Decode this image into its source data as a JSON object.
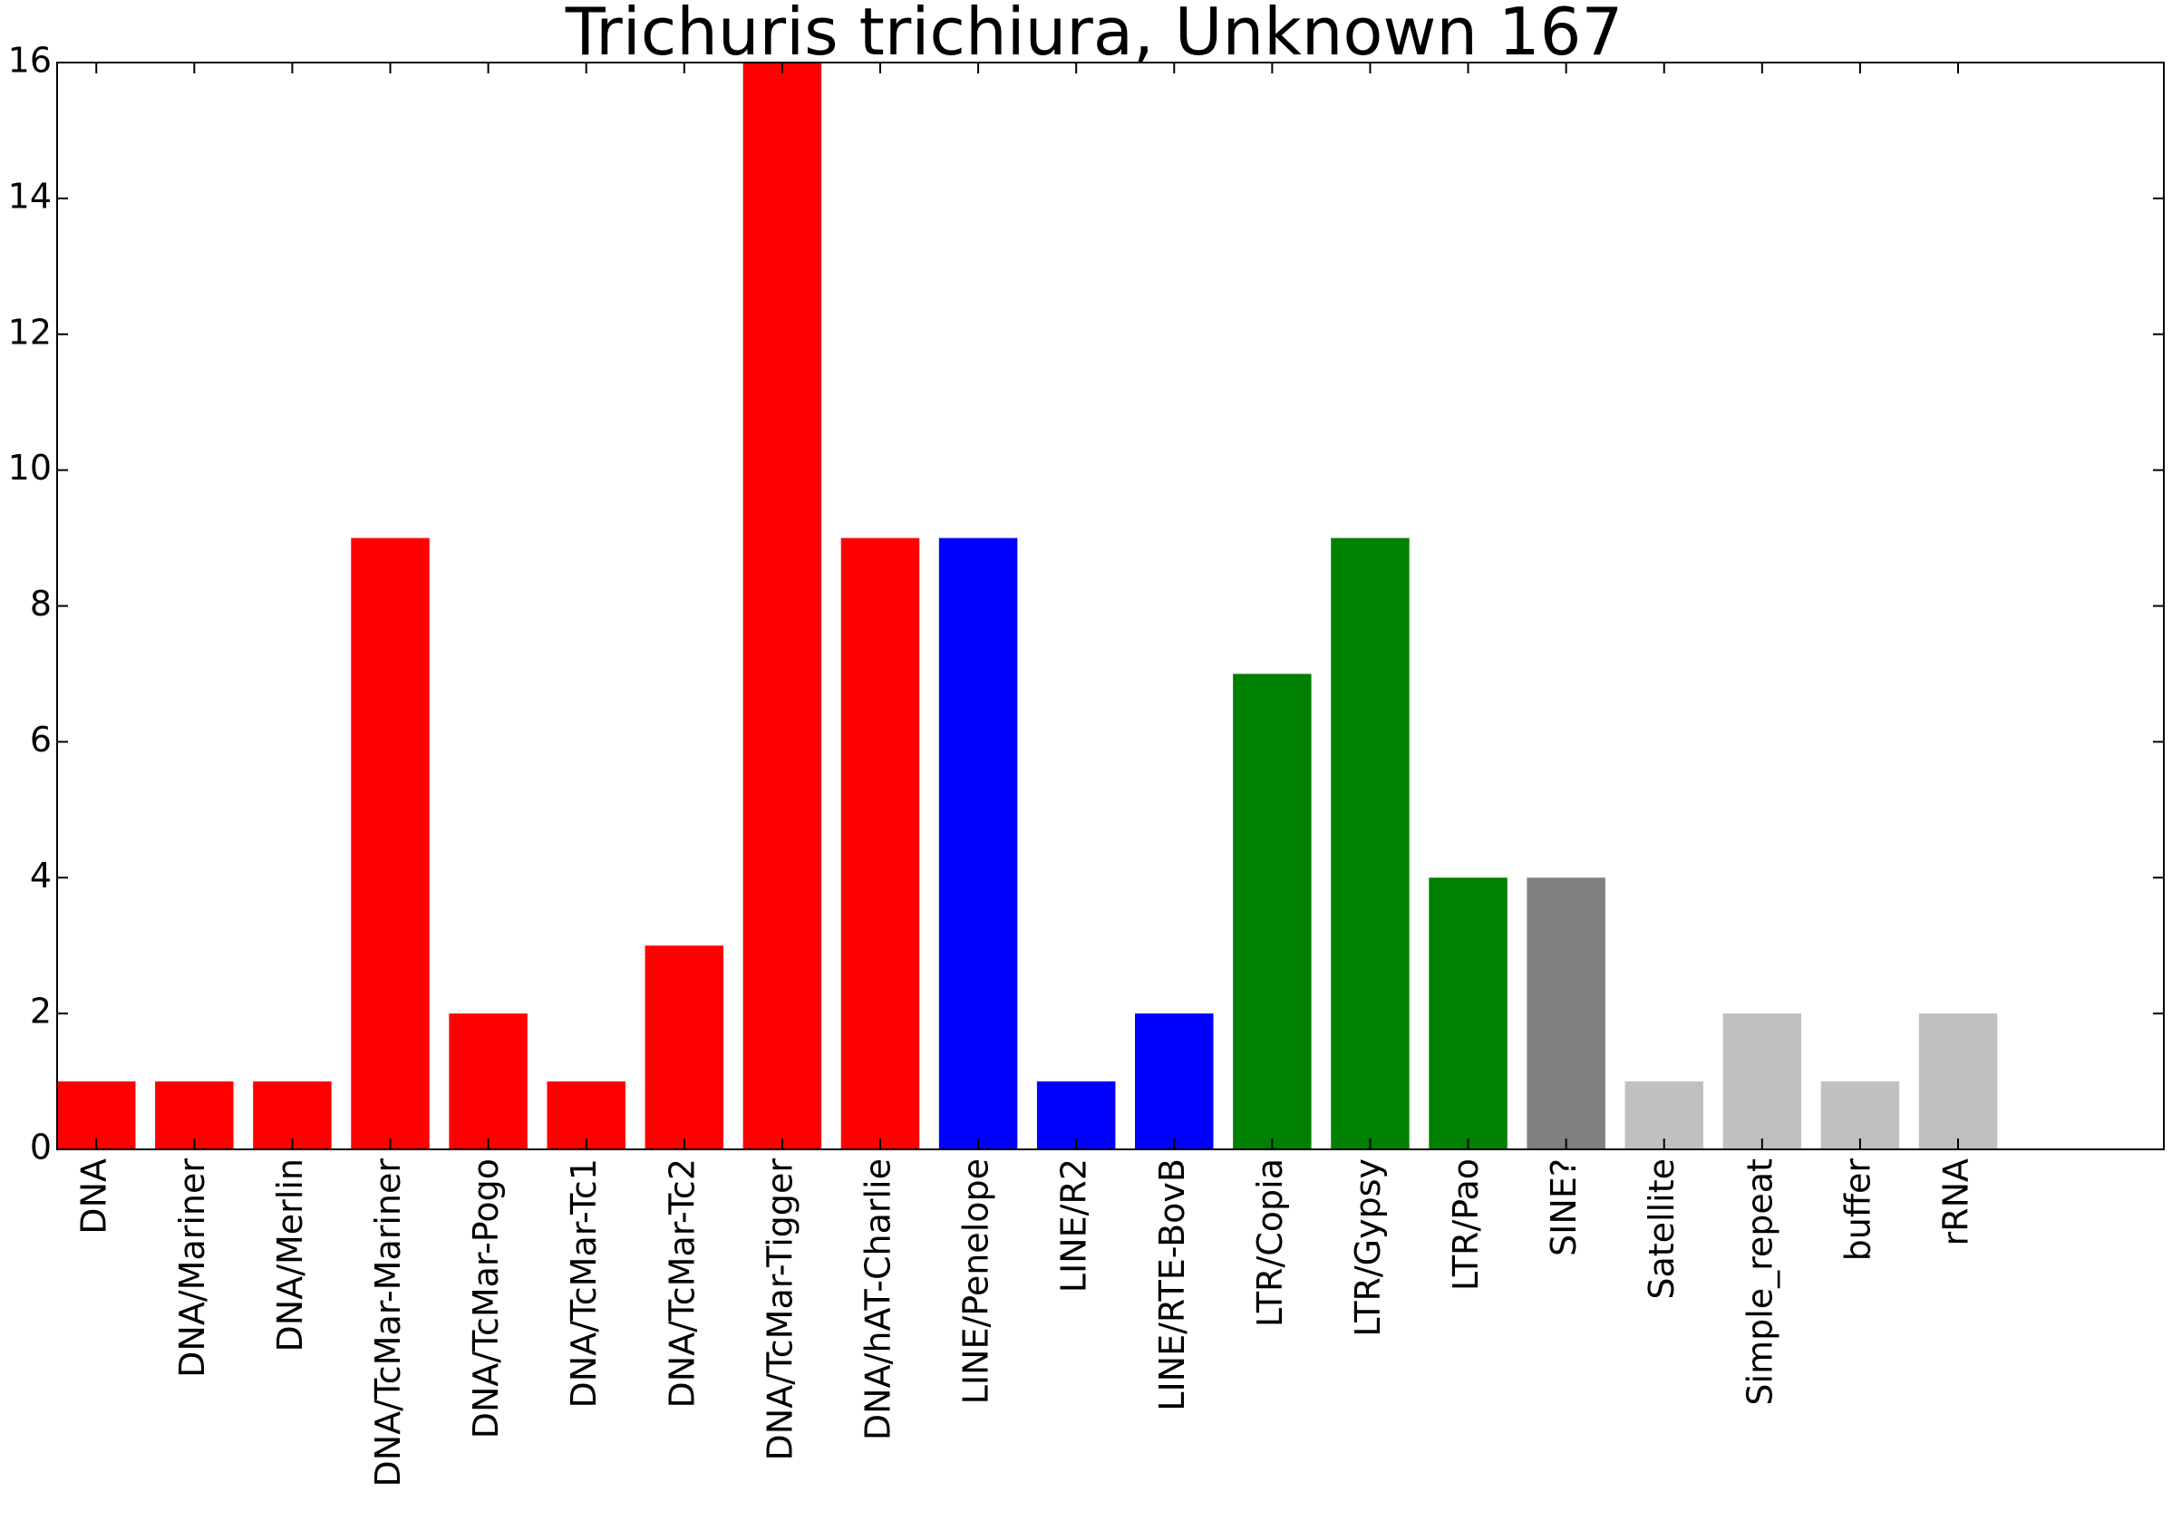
{
  "chart_data": {
    "type": "bar",
    "title": "Trichuris trichiura, Unknown 167",
    "xlabel": "",
    "ylabel": "",
    "ylim": [
      0,
      16
    ],
    "yticks": [
      0,
      2,
      4,
      6,
      8,
      10,
      12,
      14,
      16
    ],
    "xlim": [
      0,
      21.5
    ],
    "grid": false,
    "legend": "none",
    "categories": [
      "DNA",
      "DNA/Mariner",
      "DNA/Merlin",
      "DNA/TcMar-Mariner",
      "DNA/TcMar-Pogo",
      "DNA/TcMar-Tc1",
      "DNA/TcMar-Tc2",
      "DNA/TcMar-Tigger",
      "DNA/hAT-Charlie",
      "LINE/Penelope",
      "LINE/R2",
      "LINE/RTE-BovB",
      "LTR/Copia",
      "LTR/Gypsy",
      "LTR/Pao",
      "SINE?",
      "Satellite",
      "Simple_repeat",
      "buffer",
      "rRNA"
    ],
    "values": [
      1,
      1,
      1,
      9,
      2,
      1,
      3,
      16,
      9,
      9,
      1,
      2,
      7,
      9,
      4,
      4,
      1,
      2,
      1,
      2
    ],
    "colors": [
      "#ff0000",
      "#ff0000",
      "#ff0000",
      "#ff0000",
      "#ff0000",
      "#ff0000",
      "#ff0000",
      "#ff0000",
      "#ff0000",
      "#0000ff",
      "#0000ff",
      "#0000ff",
      "#008000",
      "#008000",
      "#008000",
      "#808080",
      "#c0c0c0",
      "#c0c0c0",
      "#c0c0c0",
      "#c0c0c0"
    ]
  }
}
